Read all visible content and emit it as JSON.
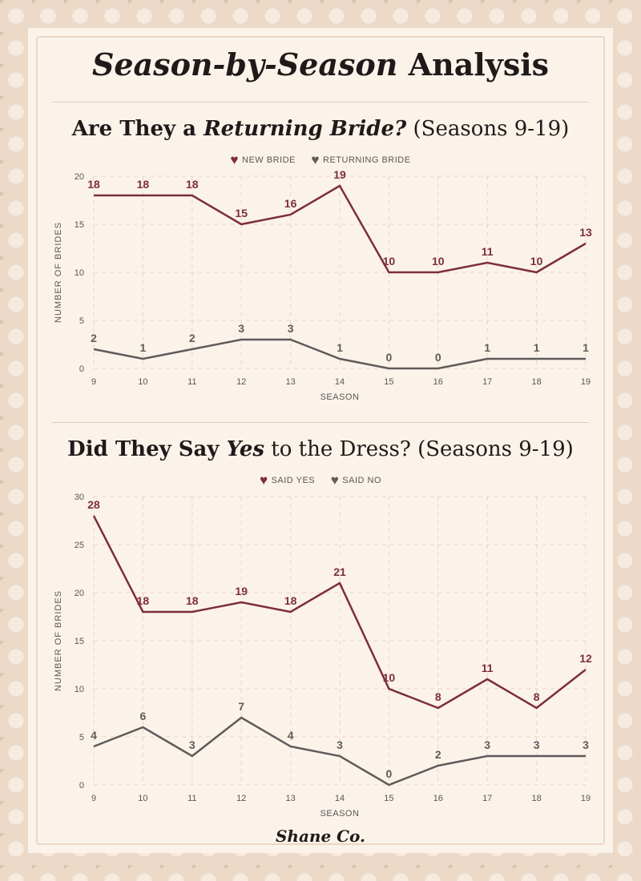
{
  "title": {
    "italic": "Season-by-Season",
    "rest": " Analysis"
  },
  "colors": {
    "primary": "#7d2e3a",
    "secondary": "#5f5b5b",
    "grid": "#ecd3c2"
  },
  "logo": "Shane Co.",
  "chart_data": [
    {
      "type": "line",
      "title": {
        "pre": "Are They a ",
        "italic": "Returning Bride?",
        "post": " (Seasons 9-19)"
      },
      "xlabel": "SEASON",
      "ylabel": "NUMBER OF BRIDES",
      "x": [
        9,
        10,
        11,
        12,
        13,
        14,
        15,
        16,
        17,
        18,
        19
      ],
      "ylim": [
        0,
        20
      ],
      "yticks": [
        0,
        5,
        10,
        15,
        20
      ],
      "grid": true,
      "legend_position": "top-center",
      "series": [
        {
          "name": "NEW BRIDE",
          "color": "#7d2e3a",
          "values": [
            18,
            18,
            18,
            15,
            16,
            19,
            10,
            10,
            11,
            10,
            13
          ]
        },
        {
          "name": "RETURNING BRIDE",
          "color": "#5f5b5b",
          "values": [
            2,
            1,
            2,
            3,
            3,
            1,
            0,
            0,
            1,
            1,
            1
          ]
        }
      ]
    },
    {
      "type": "line",
      "title": {
        "pre": "Did They Say ",
        "italic": "Yes",
        "post": " to the Dress? (Seasons 9-19)"
      },
      "xlabel": "SEASON",
      "ylabel": "NUMBER OF BRIDES",
      "x": [
        9,
        10,
        11,
        12,
        13,
        14,
        15,
        16,
        17,
        18,
        19
      ],
      "ylim": [
        0,
        30
      ],
      "yticks": [
        0,
        5,
        10,
        15,
        20,
        25,
        30
      ],
      "grid": true,
      "legend_position": "top-center",
      "series": [
        {
          "name": "SAID YES",
          "color": "#7d2e3a",
          "values": [
            28,
            18,
            18,
            19,
            18,
            21,
            10,
            8,
            11,
            8,
            12
          ]
        },
        {
          "name": "SAID NO",
          "color": "#5f5b5b",
          "values": [
            4,
            6,
            3,
            7,
            4,
            3,
            0,
            2,
            3,
            3,
            3
          ]
        }
      ]
    }
  ]
}
